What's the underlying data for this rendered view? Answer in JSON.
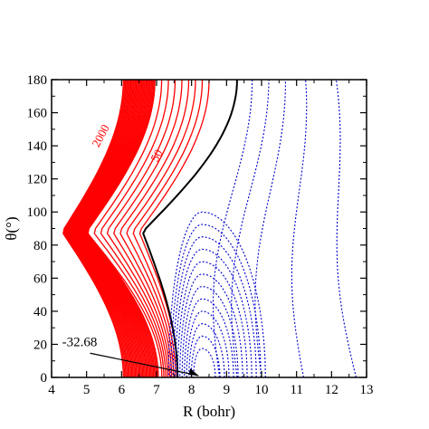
{
  "chart_data": {
    "type": "contour",
    "xlabel": "R (bohr)",
    "ylabel": "θ(°)",
    "xlim": [
      4,
      13
    ],
    "ylim": [
      0,
      180
    ],
    "x_ticks": [
      4,
      5,
      6,
      7,
      8,
      9,
      10,
      11,
      12,
      13
    ],
    "y_ticks": [
      0,
      20,
      40,
      60,
      80,
      100,
      120,
      140,
      160,
      180
    ],
    "grid": false,
    "colors": {
      "repulsive": "#ff0000",
      "zero": "#000000",
      "attractive": "#0000cc"
    },
    "contour_labels": [
      {
        "text": "2000",
        "R": 5.5,
        "theta": 145,
        "rotate": -62,
        "color": "#ff0000"
      },
      {
        "text": "50",
        "R": 7.1,
        "theta": 133,
        "rotate": -62,
        "color": "#ff0000"
      }
    ],
    "minimum": {
      "label": "-32.68",
      "label_R": 4.3,
      "label_theta": 19,
      "R": 8.25,
      "theta": 0
    },
    "repulsive_contours": [
      {
        "R_min": 4.3,
        "R_180": 6.05,
        "R_0": 6.05,
        "count": 30
      },
      {
        "R_min": 5.0,
        "R_180": 6.95,
        "R_0": 7.15,
        "count": 9
      }
    ],
    "zero_contour": {
      "R_min": 6.6,
      "R_180": 9.3,
      "R_0": 7.6
    },
    "attractive_contours": [
      {
        "shape": "closed",
        "R_center": 8.3,
        "theta_center": 0,
        "count": 12
      },
      {
        "shape": "open",
        "R_180": [
          9.4,
          9.9,
          10.4,
          11.0,
          11.9
        ],
        "R_0": [
          8.8,
          9.3,
          10.0,
          11.2,
          12.7
        ]
      }
    ]
  }
}
